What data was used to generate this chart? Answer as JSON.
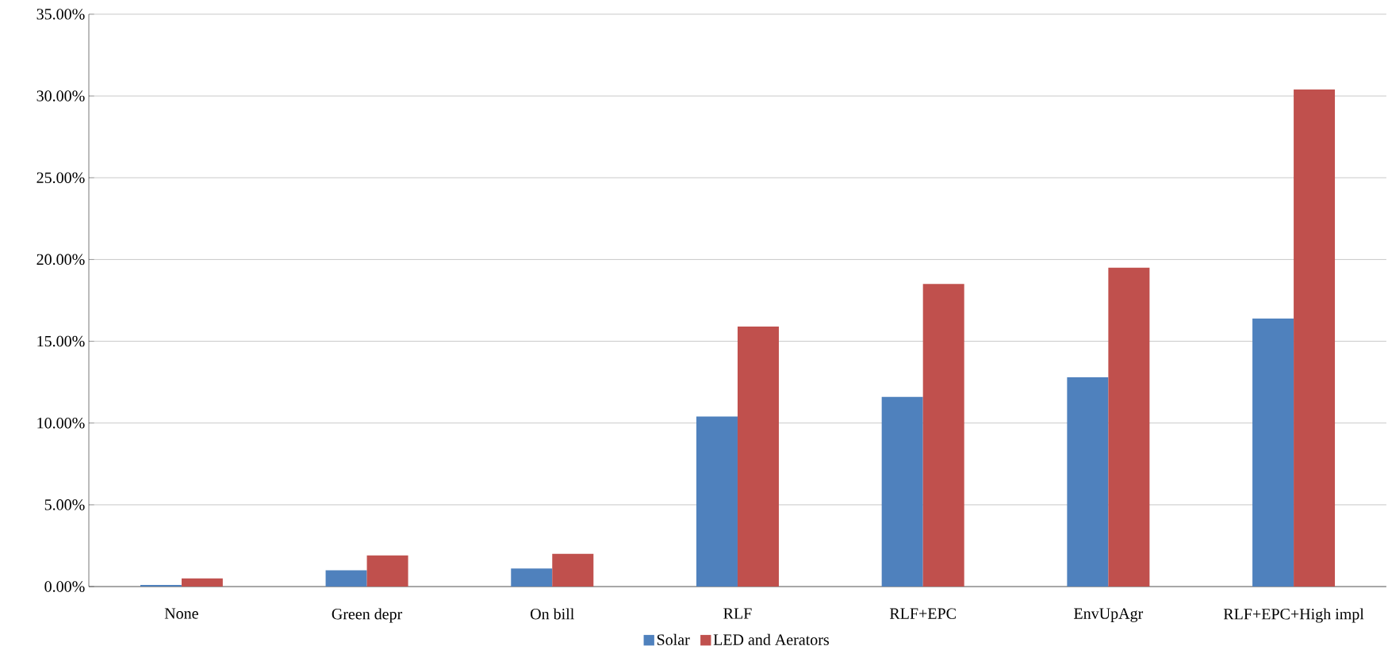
{
  "chart_data": {
    "type": "bar",
    "categories": [
      "None",
      "Green depr",
      "On bill",
      "RLF",
      "RLF+EPC",
      "EnvUpAgr",
      "RLF+EPC+High impl"
    ],
    "series": [
      {
        "name": "Solar",
        "color": "#4f81bd",
        "values": [
          0.1,
          1.0,
          1.1,
          10.4,
          11.6,
          12.8,
          16.4
        ]
      },
      {
        "name": "LED and Aerators",
        "color": "#c0504d",
        "values": [
          0.5,
          1.9,
          2.0,
          15.9,
          18.5,
          19.5,
          30.4
        ]
      }
    ],
    "ylim": [
      0,
      35
    ],
    "yticks": [
      {
        "value": 0,
        "label": "0.00%"
      },
      {
        "value": 5,
        "label": "5.00%"
      },
      {
        "value": 10,
        "label": "10.00%"
      },
      {
        "value": 15,
        "label": "15.00%"
      },
      {
        "value": 20,
        "label": "20.00%"
      },
      {
        "value": 25,
        "label": "25.00%"
      },
      {
        "value": 30,
        "label": "30.00%"
      },
      {
        "value": 35,
        "label": "35.00%"
      }
    ],
    "grid": "y",
    "legend": "bottom"
  }
}
